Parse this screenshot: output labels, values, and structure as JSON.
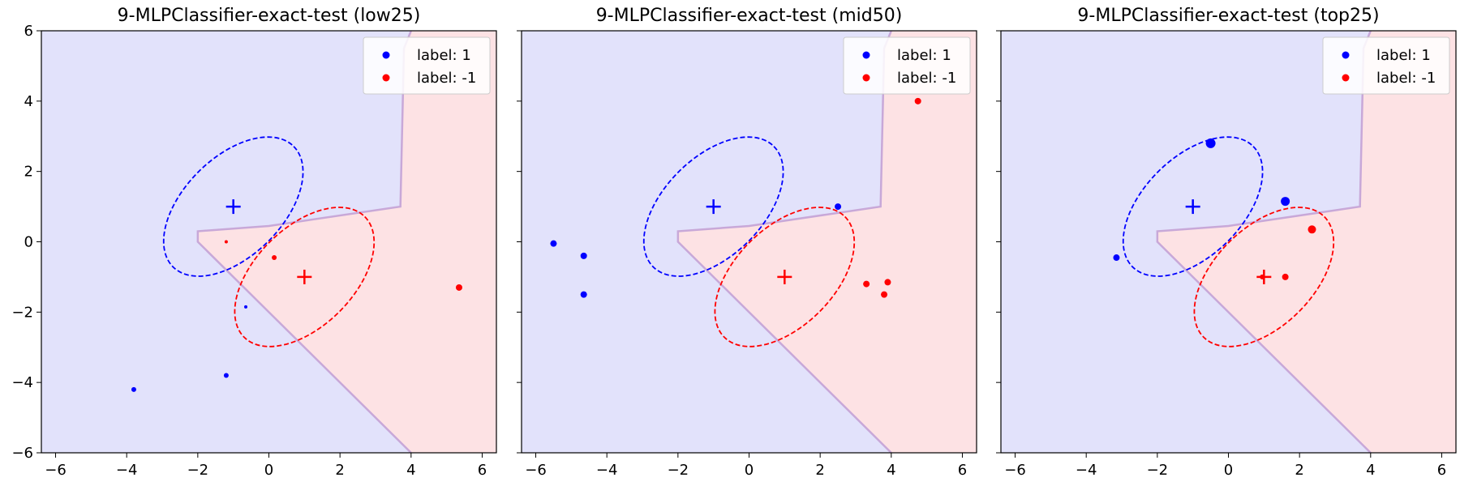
{
  "colors": {
    "class_pos": "#0000ff",
    "class_neg": "#ff0000",
    "region_pos": "#e2e2fb",
    "region_neg": "#fde2e4",
    "boundary": "#c8a8d8"
  },
  "chart_data": [
    {
      "type": "scatter",
      "title": "9-MLPClassifier-exact-test (low25)",
      "xlim": [
        -6.4,
        6.4
      ],
      "ylim": [
        -6,
        6
      ],
      "xticks": [
        -6,
        -4,
        -2,
        0,
        2,
        4,
        6
      ],
      "yticks": [
        -6,
        -4,
        -2,
        0,
        2,
        4,
        6
      ],
      "legend": {
        "placement": "top-right",
        "entries": [
          "label: 1",
          "label: -1"
        ]
      },
      "series": [
        {
          "name": "label: 1",
          "color": "#0000ff",
          "points": [
            {
              "x": -3.8,
              "y": -4.2,
              "size": 3
            },
            {
              "x": -1.2,
              "y": -3.8,
              "size": 3
            },
            {
              "x": -0.65,
              "y": -1.85,
              "size": 2
            }
          ]
        },
        {
          "name": "label: -1",
          "color": "#ff0000",
          "points": [
            {
              "x": -1.2,
              "y": 0.0,
              "size": 2
            },
            {
              "x": 0.15,
              "y": -0.45,
              "size": 3
            },
            {
              "x": 5.35,
              "y": -1.3,
              "size": 4
            }
          ]
        }
      ],
      "class_means": [
        {
          "x": -1,
          "y": 1,
          "class": "label: 1"
        },
        {
          "x": 1,
          "y": -1,
          "class": "label: -1"
        }
      ],
      "covariance_ellipses": [
        {
          "cx": -1,
          "cy": 1,
          "rx": 2.4,
          "ry": 1.4,
          "angle": 45,
          "class": "label: 1"
        },
        {
          "cx": 1,
          "cy": -1,
          "rx": 2.4,
          "ry": 1.4,
          "angle": 45,
          "class": "label: -1"
        }
      ],
      "decision_boundary": [
        [
          4.0,
          6.0
        ],
        [
          3.8,
          5.5
        ],
        [
          3.7,
          1.0
        ],
        [
          0,
          0.45
        ],
        [
          -2.0,
          0.3
        ],
        [
          -2.0,
          0.0
        ],
        [
          4.0,
          -6.0
        ]
      ]
    },
    {
      "type": "scatter",
      "title": "9-MLPClassifier-exact-test (mid50)",
      "xlim": [
        -6.4,
        6.4
      ],
      "ylim": [
        -6,
        6
      ],
      "xticks": [
        -6,
        -4,
        -2,
        0,
        2,
        4,
        6
      ],
      "yticks": [
        -6,
        -4,
        -2,
        0,
        2,
        4,
        6
      ],
      "legend": {
        "placement": "top-right",
        "entries": [
          "label: 1",
          "label: -1"
        ]
      },
      "series": [
        {
          "name": "label: 1",
          "color": "#0000ff",
          "points": [
            {
              "x": -5.5,
              "y": -0.05,
              "size": 4
            },
            {
              "x": -4.65,
              "y": -0.4,
              "size": 4
            },
            {
              "x": -4.65,
              "y": -1.5,
              "size": 4
            },
            {
              "x": 2.5,
              "y": 1.0,
              "size": 4
            }
          ]
        },
        {
          "name": "label: -1",
          "color": "#ff0000",
          "points": [
            {
              "x": 3.3,
              "y": -1.2,
              "size": 4
            },
            {
              "x": 3.8,
              "y": -1.5,
              "size": 4
            },
            {
              "x": 3.9,
              "y": -1.15,
              "size": 4
            },
            {
              "x": 4.75,
              "y": 4.0,
              "size": 4
            }
          ]
        }
      ],
      "class_means": [
        {
          "x": -1,
          "y": 1,
          "class": "label: 1"
        },
        {
          "x": 1,
          "y": -1,
          "class": "label: -1"
        }
      ],
      "covariance_ellipses": [
        {
          "cx": -1,
          "cy": 1,
          "rx": 2.4,
          "ry": 1.4,
          "angle": 45,
          "class": "label: 1"
        },
        {
          "cx": 1,
          "cy": -1,
          "rx": 2.4,
          "ry": 1.4,
          "angle": 45,
          "class": "label: -1"
        }
      ],
      "decision_boundary": [
        [
          4.0,
          6.0
        ],
        [
          3.8,
          5.5
        ],
        [
          3.7,
          1.0
        ],
        [
          0,
          0.45
        ],
        [
          -2.0,
          0.3
        ],
        [
          -2.0,
          0.0
        ],
        [
          4.0,
          -6.0
        ]
      ]
    },
    {
      "type": "scatter",
      "title": "9-MLPClassifier-exact-test (top25)",
      "xlim": [
        -6.4,
        6.4
      ],
      "ylim": [
        -6,
        6
      ],
      "xticks": [
        -6,
        -4,
        -2,
        0,
        2,
        4,
        6
      ],
      "yticks": [
        -6,
        -4,
        -2,
        0,
        2,
        4,
        6
      ],
      "legend": {
        "placement": "top-right",
        "entries": [
          "label: 1",
          "label: -1"
        ]
      },
      "series": [
        {
          "name": "label: 1",
          "color": "#0000ff",
          "points": [
            {
              "x": -0.5,
              "y": 2.8,
              "size": 6
            },
            {
              "x": 1.6,
              "y": 1.15,
              "size": 5.5
            },
            {
              "x": -3.15,
              "y": -0.45,
              "size": 4
            }
          ]
        },
        {
          "name": "label: -1",
          "color": "#ff0000",
          "points": [
            {
              "x": 2.35,
              "y": 0.35,
              "size": 5
            },
            {
              "x": 1.6,
              "y": -1.0,
              "size": 4
            },
            {
              "x": 0.95,
              "y": -1.0,
              "size": 3
            }
          ]
        }
      ],
      "class_means": [
        {
          "x": -1,
          "y": 1,
          "class": "label: 1"
        },
        {
          "x": 1,
          "y": -1,
          "class": "label: -1"
        }
      ],
      "covariance_ellipses": [
        {
          "cx": -1,
          "cy": 1,
          "rx": 2.4,
          "ry": 1.4,
          "angle": 45,
          "class": "label: 1"
        },
        {
          "cx": 1,
          "cy": -1,
          "rx": 2.4,
          "ry": 1.4,
          "angle": 45,
          "class": "label: -1"
        }
      ],
      "decision_boundary": [
        [
          4.0,
          6.0
        ],
        [
          3.8,
          5.5
        ],
        [
          3.7,
          1.0
        ],
        [
          0,
          0.45
        ],
        [
          -2.0,
          0.3
        ],
        [
          -2.0,
          0.0
        ],
        [
          4.0,
          -6.0
        ]
      ]
    }
  ]
}
